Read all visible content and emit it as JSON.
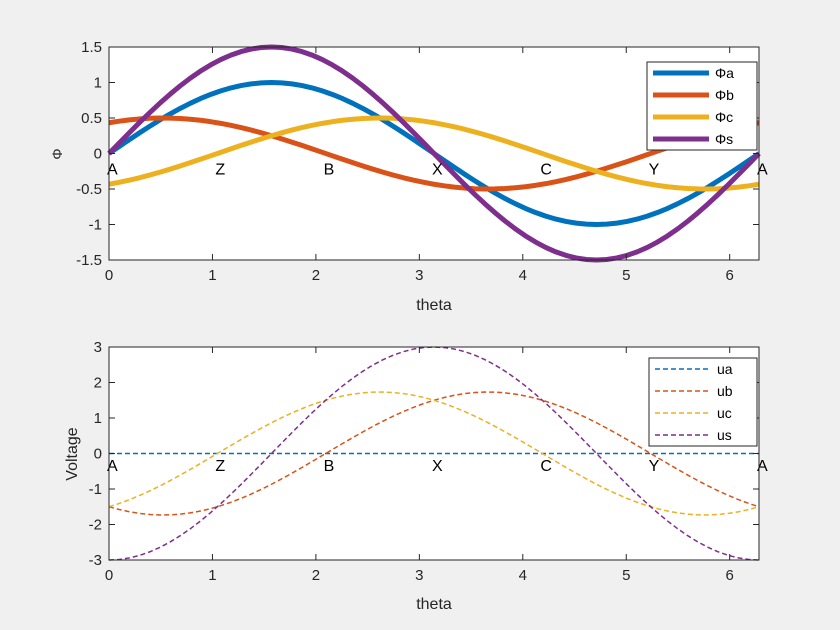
{
  "chart_data": [
    {
      "type": "line",
      "xlabel": "theta",
      "ylabel": "Φ",
      "xlim": [
        0,
        6.2832
      ],
      "ylim": [
        -1.5,
        1.5
      ],
      "xticks": [
        "0",
        "1",
        "2",
        "3",
        "4",
        "5",
        "6"
      ],
      "yticks": [
        "-1.5",
        "-1",
        "-0.5",
        "0",
        "0.5",
        "1",
        "1.5"
      ],
      "grid": false,
      "legend_position": "top-right",
      "line_style": "solid",
      "sample_step": 0.0982,
      "x": [
        0,
        0.7854,
        1.5708,
        2.3562,
        3.1416,
        3.927,
        4.7124,
        5.4978,
        6.2832
      ],
      "series": [
        {
          "name": "Φa",
          "color": "#0072BD",
          "values": [
            0,
            0.7071,
            1,
            0.7071,
            0,
            -0.7071,
            -1,
            -0.7071,
            0
          ]
        },
        {
          "name": "Φb",
          "color": "#D95319",
          "values": [
            0.433,
            0.483,
            0.25,
            -0.129,
            -0.433,
            -0.483,
            -0.25,
            0.129,
            0.433
          ]
        },
        {
          "name": "Φc",
          "color": "#EDB120",
          "values": [
            -0.433,
            -0.129,
            0.25,
            0.483,
            0.433,
            0.129,
            -0.25,
            -0.483,
            -0.433
          ]
        },
        {
          "name": "Φs",
          "color": "#7E2F8E",
          "values": [
            0,
            1.0607,
            1.5,
            1.0607,
            0,
            -1.0607,
            -1.5,
            -1.0607,
            0
          ]
        }
      ],
      "annotations": [
        {
          "text": "A",
          "x": 0,
          "y": -0.1
        },
        {
          "text": "Z",
          "x": 1.0472,
          "y": -0.1
        },
        {
          "text": "B",
          "x": 2.0944,
          "y": -0.1
        },
        {
          "text": "X",
          "x": 3.1416,
          "y": -0.1
        },
        {
          "text": "C",
          "x": 4.1888,
          "y": -0.1
        },
        {
          "text": "Y",
          "x": 5.236,
          "y": -0.1
        },
        {
          "text": "A",
          "x": 6.2832,
          "y": -0.1
        }
      ]
    },
    {
      "type": "line",
      "xlabel": "theta",
      "ylabel": "Voltage",
      "xlim": [
        0,
        6.2832
      ],
      "ylim": [
        -3,
        3
      ],
      "xticks": [
        "0",
        "1",
        "2",
        "3",
        "4",
        "5",
        "6"
      ],
      "yticks": [
        "-3",
        "-2",
        "-1",
        "0",
        "1",
        "2",
        "3"
      ],
      "grid": false,
      "legend_position": "top-right",
      "line_style": "dashed",
      "sample_step": 0.0982,
      "x": [
        0,
        0.7854,
        1.5708,
        2.3562,
        3.1416,
        3.927,
        4.7124,
        5.4978,
        6.2832
      ],
      "series": [
        {
          "name": "ua",
          "color": "#0072BD",
          "values": [
            0,
            0,
            0,
            0,
            0,
            0,
            0,
            0,
            0
          ]
        },
        {
          "name": "ub",
          "color": "#D95319",
          "values": [
            -1.5,
            -1.673,
            -0.866,
            0.448,
            1.5,
            1.673,
            0.866,
            -0.448,
            -1.5
          ]
        },
        {
          "name": "uc",
          "color": "#EDB120",
          "values": [
            -1.5,
            -0.448,
            0.866,
            1.673,
            1.5,
            0.448,
            -0.866,
            -1.673,
            -1.5
          ]
        },
        {
          "name": "us",
          "color": "#7E2F8E",
          "values": [
            -3,
            -2.121,
            0,
            2.121,
            3,
            2.121,
            0,
            -2.121,
            -3
          ]
        }
      ],
      "annotations": [
        {
          "text": "A",
          "x": 0,
          "y": -0.1
        },
        {
          "text": "Z",
          "x": 1.0472,
          "y": -0.1
        },
        {
          "text": "B",
          "x": 2.0944,
          "y": -0.1
        },
        {
          "text": "X",
          "x": 3.1416,
          "y": -0.1
        },
        {
          "text": "C",
          "x": 4.1888,
          "y": -0.1
        },
        {
          "text": "Y",
          "x": 5.236,
          "y": -0.1
        },
        {
          "text": "A",
          "x": 6.2832,
          "y": -0.1
        }
      ]
    }
  ]
}
